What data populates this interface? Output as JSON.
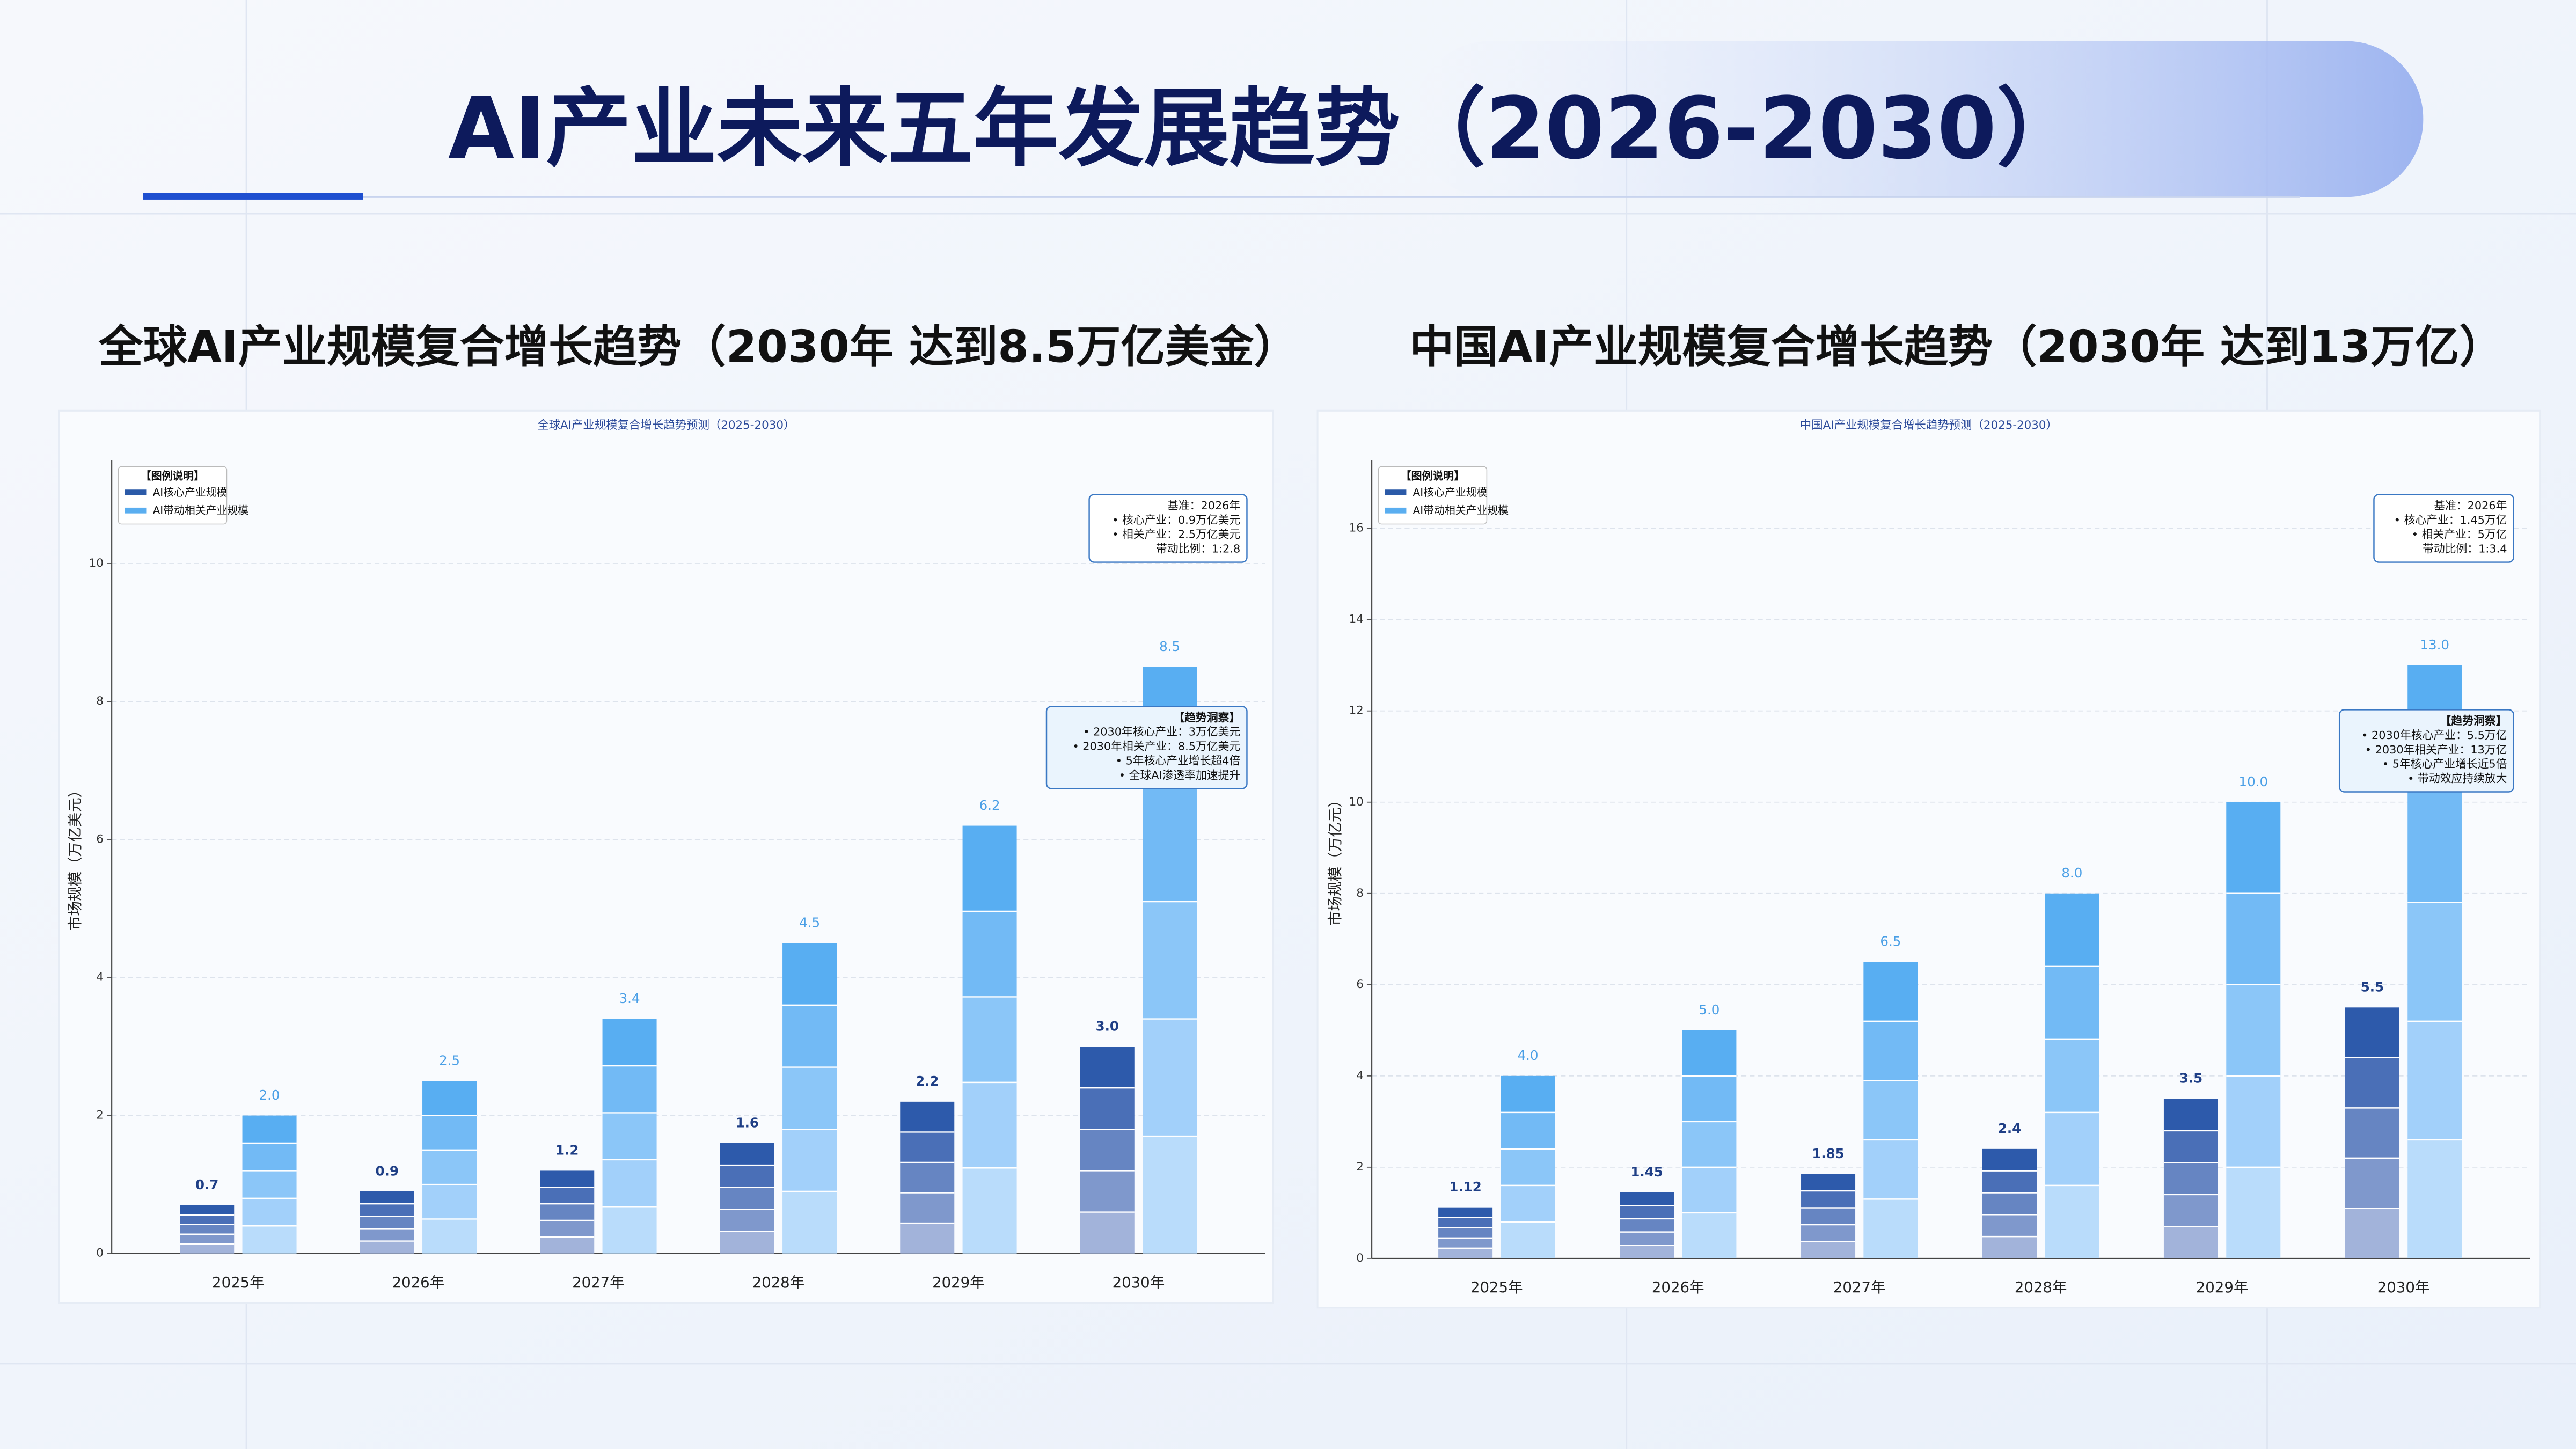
{
  "header": {
    "title": "AI产业未来五年发展趋势（2026-2030）",
    "subtitles": [
      "全球AI产业规模复合增长趋势（2030年 达到8.5万亿美金）",
      "中国AI产业规模复合增长趋势（2030年 达到13万亿）"
    ]
  },
  "chart_data": [
    {
      "type": "bar",
      "title": "全球AI产业规模复合增长趋势预测（2025-2030）",
      "y_label": "市场规模（万亿美元）",
      "categories": [
        "2025年",
        "2026年",
        "2027年",
        "2028年",
        "2029年",
        "2030年"
      ],
      "series": [
        {
          "name": "AI核心产业规模",
          "color": "#2b5aa8",
          "values": [
            0.7,
            0.9,
            1.2,
            1.6,
            2.2,
            3.0
          ],
          "value_labels": [
            "0.7",
            "0.9",
            "1.2",
            "1.6",
            "2.2",
            "3.0"
          ]
        },
        {
          "name": "AI带动相关产业规模",
          "color": "#5aaef0",
          "values": [
            2.0,
            2.5,
            3.4,
            4.5,
            6.2,
            8.5
          ],
          "value_labels": [
            "2.0",
            "2.5",
            "3.4",
            "4.5",
            "6.2",
            "8.5"
          ]
        }
      ],
      "ylim": [
        0,
        11.5
      ],
      "yticks": [
        0,
        2,
        4,
        6,
        8,
        10
      ],
      "grid": true,
      "legend": "upper left",
      "legend_title": "【图例说明】",
      "annotations": [
        {
          "lines": [
            "基准：2026年",
            "• 核心产业：0.9万亿美元",
            "• 相关产业：2.5万亿美元",
            "带动比例：1:2.8"
          ]
        },
        {
          "lines": [
            "【趋势洞察】",
            "• 2030年核心产业：3万亿美元",
            "• 2030年相关产业：8.5万亿美元",
            "• 5年核心产业增长超4倍",
            "• 全球AI渗透率加速提升"
          ]
        }
      ]
    },
    {
      "type": "bar",
      "title": "中国AI产业规模复合增长趋势预测（2025-2030）",
      "y_label": "市场规模（万亿元）",
      "categories": [
        "2025年",
        "2026年",
        "2027年",
        "2028年",
        "2029年",
        "2030年"
      ],
      "series": [
        {
          "name": "AI核心产业规模",
          "color": "#2b5aa8",
          "values": [
            1.12,
            1.45,
            1.85,
            2.4,
            3.5,
            5.5
          ]
        },
        {
          "name": "AI带动相关产业规模",
          "color": "#5aaef0",
          "values": [
            4.0,
            5.0,
            6.5,
            8.0,
            10.0,
            13.0
          ],
          "value_labels": [
            "4.0",
            "5.0",
            "6.5",
            "8.0",
            "10.0",
            "13.0"
          ]
        }
      ],
      "ylim": [
        0,
        17.5
      ],
      "yticks": [
        0,
        2,
        4,
        6,
        8,
        10,
        12,
        14,
        16
      ],
      "grid": true,
      "legend": "upper left",
      "legend_title": "【图例说明】",
      "annotations": [
        {
          "lines": [
            "基准：2026年",
            "• 核心产业：1.45万亿",
            "• 相关产业：5万亿",
            "带动比例：1:3.4"
          ]
        },
        {
          "lines": [
            "【趋势洞察】",
            "• 2030年核心产业：5.5万亿",
            "• 2030年相关产业：13万亿",
            "• 5年核心产业增长近5倍",
            "• 带动效应持续放大"
          ]
        }
      ]
    }
  ]
}
